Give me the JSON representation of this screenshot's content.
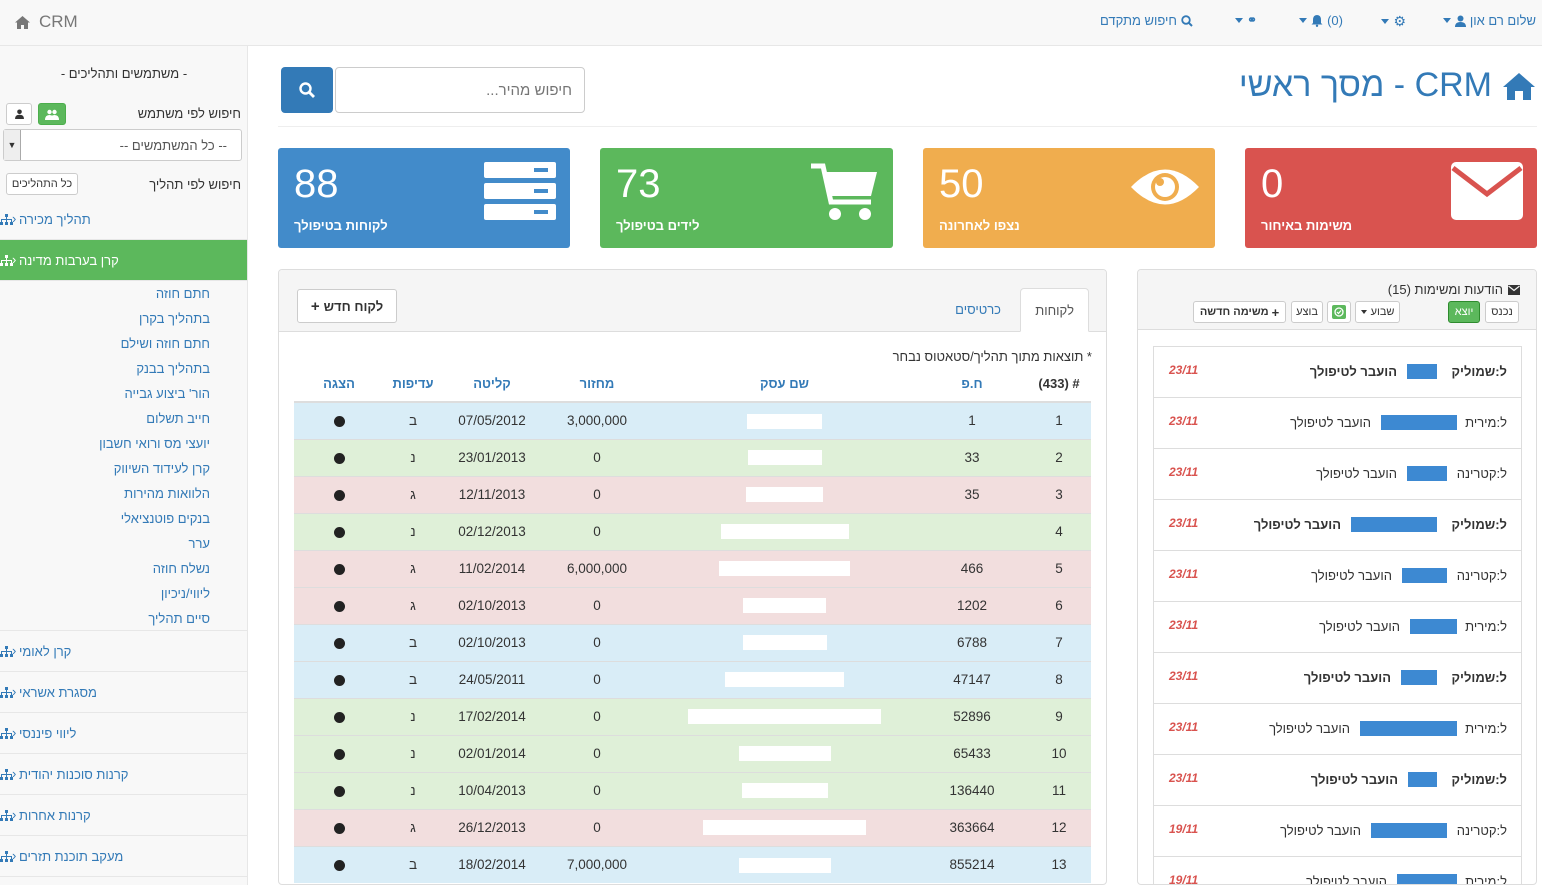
{
  "topnav": {
    "brand": "CRM",
    "user": "שלום רם און",
    "notifications": "(0)",
    "advanced_search": "חיפוש מתקדם"
  },
  "sidebar": {
    "title": "- משתמשים ותהליכים -",
    "search_by_user": "חיפוש לפי משתמש",
    "user_select": "-- כל המשתמשים --",
    "search_by_process": "חיפוש לפי תהליך",
    "all_processes": "כל התהליכים",
    "processes": [
      {
        "label": "תהליך מכירה"
      },
      {
        "label": "קרן בערבות מדינה"
      },
      {
        "label": "קרן לאומי"
      },
      {
        "label": "מסגרת אשראי"
      },
      {
        "label": "ליווי פיננסי"
      },
      {
        "label": "קרנות סוכנות יהודית"
      },
      {
        "label": "קרנות אחרות"
      },
      {
        "label": "מעקב תוכנת תזרים"
      }
    ],
    "subitems": [
      "חתם חוזה",
      "בתהליך בקרן",
      "חתם חוזה ושילם",
      "בתהליך בבנק",
      "הור' ביצוע גבייה",
      "חייב תשלום",
      "יועצי מס ורואי חשבון",
      "קרן לעידוד השיווק",
      "הלוואות מהירות",
      "בנקים פוטנציאלי",
      "ערר",
      "נשלח חוזה",
      "ליווי/ניכיון",
      "סיים תהליך"
    ]
  },
  "header": {
    "title": "CRM - מסך ראשי",
    "search_placeholder": "חיפוש מהיר..."
  },
  "stats": [
    {
      "value": "88",
      "label": "לקוחות בטיפולך",
      "color": "#428bca",
      "icon": "server-icon"
    },
    {
      "value": "73",
      "label": "לידים בטיפולך",
      "color": "#5cb85c",
      "icon": "cart-icon"
    },
    {
      "value": "50",
      "label": "נצפו לאחרונה",
      "color": "#f0ad4e",
      "icon": "eye-icon"
    },
    {
      "value": "0",
      "label": "משימות באיחור",
      "color": "#d9534f",
      "icon": "envelope-icon"
    }
  ],
  "customers": {
    "tab_customers": "לקוחות",
    "tab_cards": "כרטיסים",
    "new_customer": "לקוח חדש",
    "note": "* תוצאות מתוך תהליך/סטאטוס נבחר",
    "headers": {
      "num": "# (433)",
      "hp": "ח.פ",
      "name": "שם עסק",
      "turnover": "מחזור",
      "intake": "קליטה",
      "priority": "עדיפות",
      "show": "הצגה"
    },
    "rows": [
      {
        "n": "1",
        "hp": "1",
        "turnover": "3,000,000",
        "date": "07/05/2012",
        "pri": "ב",
        "cls": "info",
        "bw": 75
      },
      {
        "n": "2",
        "hp": "33",
        "turnover": "0",
        "date": "23/01/2013",
        "pri": "נ",
        "cls": "success",
        "bw": 74
      },
      {
        "n": "3",
        "hp": "35",
        "turnover": "0",
        "date": "12/11/2013",
        "pri": "ג",
        "cls": "danger",
        "bw": 77
      },
      {
        "n": "4",
        "hp": "",
        "turnover": "0",
        "date": "02/12/2013",
        "pri": "נ",
        "cls": "success",
        "bw": 128
      },
      {
        "n": "5",
        "hp": "466",
        "turnover": "6,000,000",
        "date": "11/02/2014",
        "pri": "ג",
        "cls": "danger",
        "bw": 131
      },
      {
        "n": "6",
        "hp": "1202",
        "turnover": "0",
        "date": "02/10/2013",
        "pri": "ג",
        "cls": "danger",
        "bw": 83
      },
      {
        "n": "7",
        "hp": "6788",
        "turnover": "0",
        "date": "02/10/2013",
        "pri": "ב",
        "cls": "info",
        "bw": 84
      },
      {
        "n": "8",
        "hp": "47147",
        "turnover": "0",
        "date": "24/05/2011",
        "pri": "ב",
        "cls": "info",
        "bw": 119
      },
      {
        "n": "9",
        "hp": "52896",
        "turnover": "0",
        "date": "17/02/2014",
        "pri": "נ",
        "cls": "success",
        "bw": 193
      },
      {
        "n": "10",
        "hp": "65433",
        "turnover": "0",
        "date": "02/01/2014",
        "pri": "נ",
        "cls": "success",
        "bw": 92
      },
      {
        "n": "11",
        "hp": "136440",
        "turnover": "0",
        "date": "10/04/2013",
        "pri": "נ",
        "cls": "success",
        "bw": 86
      },
      {
        "n": "12",
        "hp": "363664",
        "turnover": "0",
        "date": "26/12/2013",
        "pri": "ג",
        "cls": "danger",
        "bw": 163
      },
      {
        "n": "13",
        "hp": "855214",
        "turnover": "7,000,000",
        "date": "18/02/2014",
        "pri": "ב",
        "cls": "info",
        "bw": 92
      }
    ]
  },
  "messages": {
    "title": "הודעות ומשימות (15)",
    "btn_in": "נכנס",
    "btn_out": "יוצא",
    "btn_week": "שבוע",
    "btn_done": "בוצע",
    "btn_new_task": "משימה חדשה",
    "items": [
      {
        "to": "ל:שמוליק",
        "action": "הועבר לטיפולך",
        "date": "23/11",
        "bold": true,
        "bw": 30
      },
      {
        "to": "ל:מירית",
        "action": "הועבר לטיפולך",
        "date": "23/11",
        "bold": false,
        "bw": 76
      },
      {
        "to": "ל:קטרינה",
        "action": "הועבר לטיפולך",
        "date": "23/11",
        "bold": false,
        "bw": 40
      },
      {
        "to": "ל:שמוליק",
        "action": "הועבר לטיפולך",
        "date": "23/11",
        "bold": true,
        "bw": 86
      },
      {
        "to": "ל:קטרינה",
        "action": "הועבר לטיפולך",
        "date": "23/11",
        "bold": false,
        "bw": 45
      },
      {
        "to": "ל:מירית",
        "action": "הועבר לטיפולך",
        "date": "23/11",
        "bold": false,
        "bw": 47
      },
      {
        "to": "ל:שמוליק",
        "action": "הועבר לטיפולך",
        "date": "23/11",
        "bold": true,
        "bw": 36
      },
      {
        "to": "ל:מירית",
        "action": "הועבר לטיפולך",
        "date": "23/11",
        "bold": false,
        "bw": 97
      },
      {
        "to": "ל:שמוליק",
        "action": "הועבר לטיפולך",
        "date": "23/11",
        "bold": true,
        "bw": 29
      },
      {
        "to": "ל:קטרינה",
        "action": "הועבר לטיפולך",
        "date": "19/11",
        "bold": false,
        "bw": 76
      },
      {
        "to": "ל:מירית",
        "action": "הועבר לטיפולך",
        "date": "19/11",
        "bold": false,
        "bw": 60
      }
    ]
  }
}
